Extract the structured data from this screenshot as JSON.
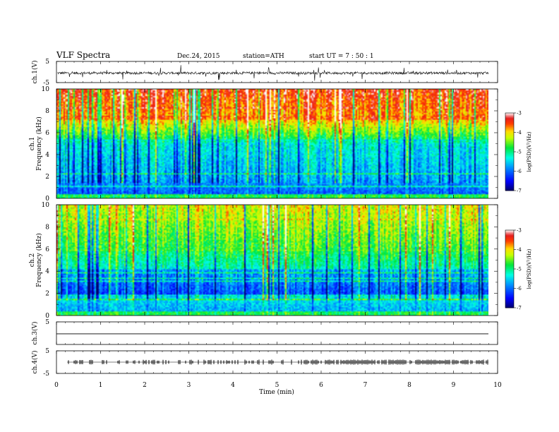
{
  "header": {
    "title": "VLF  Spectra",
    "date": "Dec.24, 2015",
    "station": "station=ATH",
    "start": "start  UT  =    7  : 50 : 1"
  },
  "chart_data": [
    {
      "type": "line",
      "id": "ch1-waveform",
      "ylabel": "ch.1(V)",
      "ylim": [
        -5,
        5
      ],
      "yticks": [
        "5",
        "-5"
      ],
      "xlim": [
        0,
        10
      ],
      "xlabel": "Time  (min)",
      "data_extent_min": [
        0,
        9.8
      ],
      "baseline_v": -0.5
    },
    {
      "type": "heatmap",
      "id": "ch1-spectrogram",
      "ylabel": "ch.1\nFrequency  (kHz)",
      "ylabel_lines": [
        "ch.1",
        "Frequency  (kHz)"
      ],
      "ylim": [
        0,
        10
      ],
      "yticks": [
        "0",
        "2",
        "4",
        "6",
        "8",
        "10"
      ],
      "colorbar": {
        "label": "log(PSD)(V²/Hz)",
        "range": [
          -7,
          -3
        ],
        "ticks": [
          "-3",
          "-4",
          "-5",
          "-6",
          "-7"
        ]
      }
    },
    {
      "type": "heatmap",
      "id": "ch2-spectrogram",
      "ylabel": "ch.2\nFrequency  (kHz)",
      "ylabel_lines": [
        "ch.2",
        "Frequency  (kHz)"
      ],
      "ylim": [
        0,
        10
      ],
      "yticks": [
        "0",
        "2",
        "4",
        "6",
        "8",
        "10"
      ],
      "colorbar": {
        "label": "log(PSD)(V²/Hz)",
        "range": [
          -7,
          -3
        ],
        "ticks": [
          "-3",
          "-4",
          "-5",
          "-6",
          "-7"
        ]
      }
    },
    {
      "type": "line",
      "id": "ch3-waveform",
      "ylabel": "ch.3(V)",
      "ylim": [
        -5,
        5
      ],
      "yticks": [
        "5"
      ],
      "baseline_v": -0.3
    },
    {
      "type": "line",
      "id": "ch4-waveform",
      "ylabel": "ch.4(V)",
      "ylim": [
        -5,
        5
      ],
      "yticks": [
        "5",
        "-5"
      ],
      "baseline_v": 0
    }
  ],
  "xaxis": {
    "label": "Time  (min)",
    "range": [
      0,
      10
    ],
    "ticks": [
      "0",
      "1",
      "2",
      "3",
      "4",
      "5",
      "6",
      "7",
      "8",
      "9",
      "10"
    ]
  },
  "colors": {
    "colormap": [
      "#00008b",
      "#0000ff",
      "#00ffff",
      "#00ff00",
      "#ffff00",
      "#ff0000",
      "#ffffff"
    ]
  }
}
